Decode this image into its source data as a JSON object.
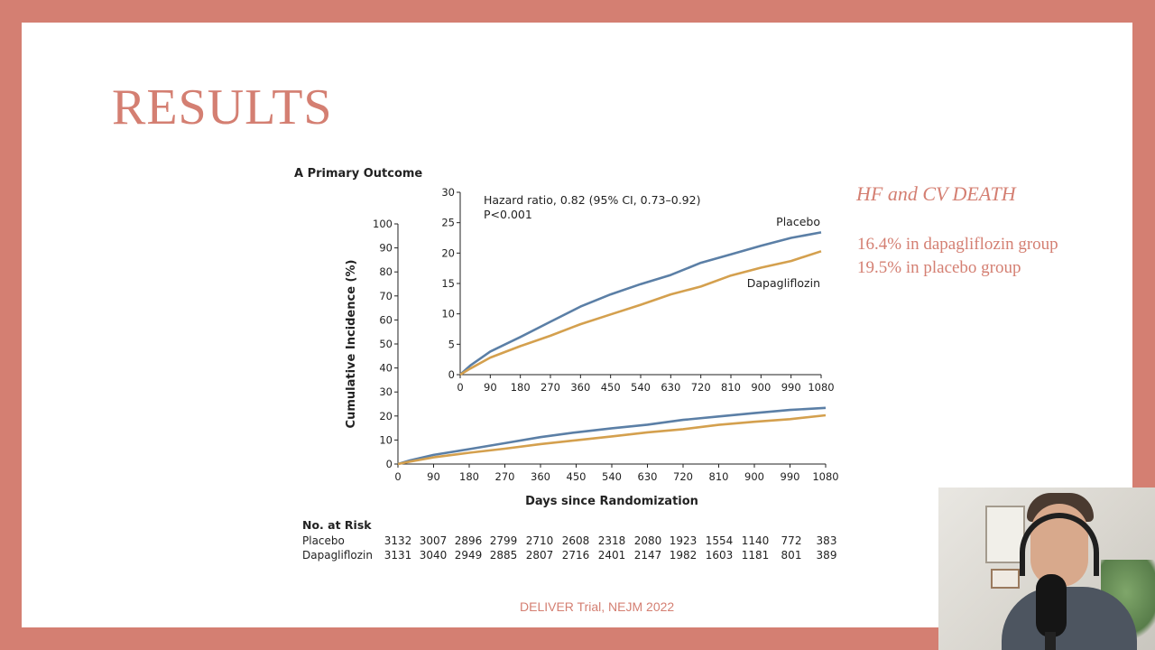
{
  "slide": {
    "title": "RESULTS",
    "side_heading": "HF and CV DEATH",
    "side_stats": [
      "16.4% in dapagliflozin group",
      "19.5% in placebo group"
    ],
    "source": "DELIVER Trial, NEJM 2022"
  },
  "colors": {
    "background": "#d47f72",
    "accent": "#d47f72",
    "placebo": "#5b7fa6",
    "dapagliflozin": "#d4a04e"
  },
  "chart_data": [
    {
      "type": "line",
      "title": "A  Primary Outcome",
      "xlabel": "Days since Randomization",
      "ylabel": "Cumulative Incidence (%)",
      "xlim": [
        0,
        1080
      ],
      "ylim": [
        0,
        100
      ],
      "xticks": [
        "0",
        "90",
        "180",
        "270",
        "360",
        "450",
        "540",
        "630",
        "720",
        "810",
        "900",
        "990",
        "1080"
      ],
      "yticks": [
        "0",
        "10",
        "20",
        "30",
        "40",
        "50",
        "60",
        "70",
        "80",
        "90",
        "100"
      ],
      "series": [
        {
          "name": "Placebo",
          "color": "#5b7fa6",
          "x": [
            0,
            30,
            90,
            180,
            270,
            360,
            450,
            540,
            630,
            720,
            810,
            900,
            990,
            1080
          ],
          "y": [
            0,
            1.5,
            3.8,
            6.2,
            8.7,
            11.2,
            13.2,
            14.9,
            16.4,
            18.4,
            19.8,
            21.2,
            22.5,
            23.4
          ]
        },
        {
          "name": "Dapagliflozin",
          "color": "#d4a04e",
          "x": [
            0,
            30,
            90,
            180,
            270,
            360,
            450,
            540,
            630,
            720,
            810,
            900,
            990,
            1080
          ],
          "y": [
            0,
            1.0,
            2.8,
            4.7,
            6.4,
            8.3,
            9.9,
            11.5,
            13.2,
            14.5,
            16.3,
            17.6,
            18.7,
            20.3
          ]
        }
      ]
    },
    {
      "type": "line",
      "title": "",
      "xlabel": "",
      "ylabel": "",
      "xlim": [
        0,
        1080
      ],
      "ylim": [
        0,
        30
      ],
      "xticks": [
        "0",
        "90",
        "180",
        "270",
        "360",
        "450",
        "540",
        "630",
        "720",
        "810",
        "900",
        "990",
        "1080"
      ],
      "yticks": [
        "0",
        "5",
        "10",
        "15",
        "20",
        "25",
        "30"
      ],
      "annotations": [
        "Hazard ratio, 0.82 (95% CI, 0.73–0.92)",
        "P<0.001"
      ],
      "series": [
        {
          "name": "Placebo",
          "color": "#5b7fa6",
          "x": [
            0,
            30,
            90,
            180,
            270,
            360,
            450,
            540,
            630,
            720,
            810,
            900,
            990,
            1080
          ],
          "y": [
            0,
            1.5,
            3.8,
            6.2,
            8.7,
            11.2,
            13.2,
            14.9,
            16.4,
            18.4,
            19.8,
            21.2,
            22.5,
            23.4
          ]
        },
        {
          "name": "Dapagliflozin",
          "color": "#d4a04e",
          "x": [
            0,
            30,
            90,
            180,
            270,
            360,
            450,
            540,
            630,
            720,
            810,
            900,
            990,
            1080
          ],
          "y": [
            0,
            1.0,
            2.8,
            4.7,
            6.4,
            8.3,
            9.9,
            11.5,
            13.2,
            14.5,
            16.3,
            17.6,
            18.7,
            20.3
          ]
        }
      ]
    }
  ],
  "risk_table": {
    "heading": "No. at Risk",
    "rows": [
      {
        "label": "Placebo",
        "values": [
          "3132",
          "3007",
          "2896",
          "2799",
          "2710",
          "2608",
          "2318",
          "2080",
          "1923",
          "1554",
          "1140",
          "772",
          "383"
        ]
      },
      {
        "label": "Dapagliflozin",
        "values": [
          "3131",
          "3040",
          "2949",
          "2885",
          "2807",
          "2716",
          "2401",
          "2147",
          "1982",
          "1603",
          "1181",
          "801",
          "389"
        ]
      }
    ]
  }
}
